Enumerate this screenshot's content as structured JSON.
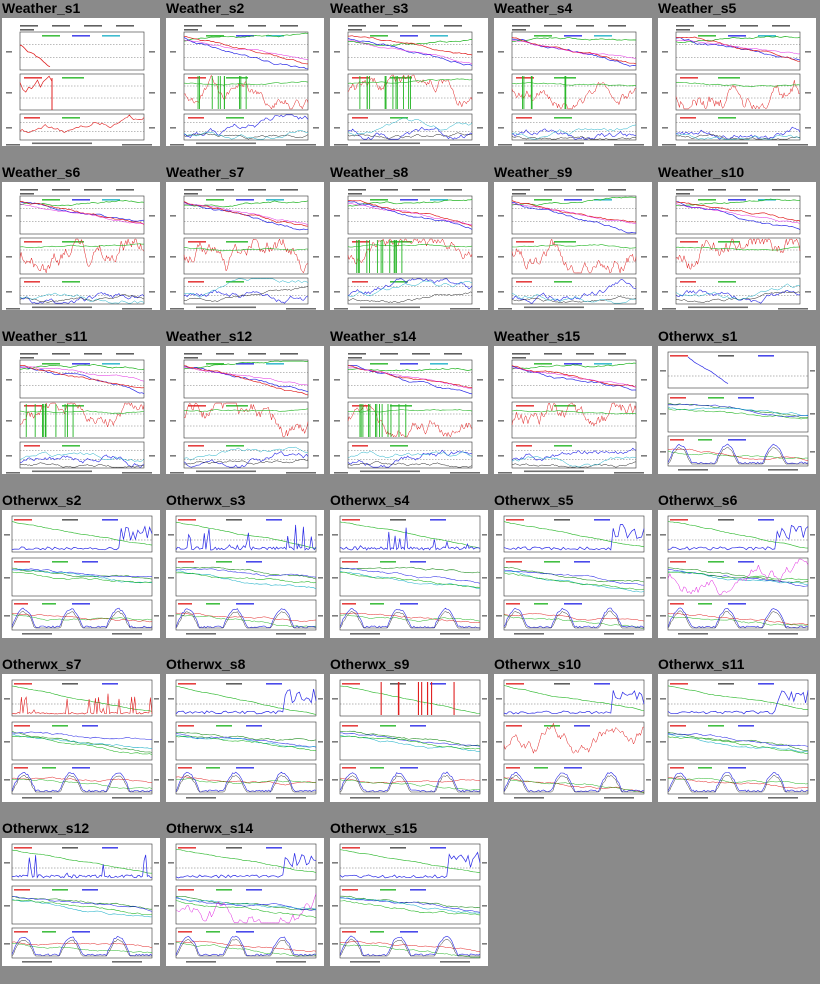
{
  "page": {
    "background": "#8a8a8a"
  },
  "colors": {
    "red": "#e02020",
    "green": "#22b422",
    "blue": "#2a2ae6",
    "cyan": "#1fb0c8",
    "magenta": "#e020e0",
    "black": "#222222"
  },
  "thumbnails": [
    {
      "title": "Weather_s1",
      "kind": "weather",
      "variant": "sparse"
    },
    {
      "title": "Weather_s2",
      "kind": "weather",
      "variant": "bars"
    },
    {
      "title": "Weather_s3",
      "kind": "weather",
      "variant": "bars"
    },
    {
      "title": "Weather_s4",
      "kind": "weather",
      "variant": "bars"
    },
    {
      "title": "Weather_s5",
      "kind": "weather",
      "variant": "noisy"
    },
    {
      "title": "Weather_s6",
      "kind": "weather",
      "variant": "noisy"
    },
    {
      "title": "Weather_s7",
      "kind": "weather",
      "variant": "noisy"
    },
    {
      "title": "Weather_s8",
      "kind": "weather",
      "variant": "bars"
    },
    {
      "title": "Weather_s9",
      "kind": "weather",
      "variant": "noisy"
    },
    {
      "title": "Weather_s10",
      "kind": "weather",
      "variant": "noisy"
    },
    {
      "title": "Weather_s11",
      "kind": "weather",
      "variant": "bars"
    },
    {
      "title": "Weather_s12",
      "kind": "weather",
      "variant": "noisy"
    },
    {
      "title": "Weather_s14",
      "kind": "weather",
      "variant": "bars"
    },
    {
      "title": "Weather_s15",
      "kind": "weather",
      "variant": "noisy"
    },
    {
      "title": "Otherwx_s1",
      "kind": "otherwx",
      "variant": "sparse"
    },
    {
      "title": "Otherwx_s2",
      "kind": "otherwx",
      "variant": "normal"
    },
    {
      "title": "Otherwx_s3",
      "kind": "otherwx",
      "variant": "spiky"
    },
    {
      "title": "Otherwx_s4",
      "kind": "otherwx",
      "variant": "spiky"
    },
    {
      "title": "Otherwx_s5",
      "kind": "otherwx",
      "variant": "normal"
    },
    {
      "title": "Otherwx_s6",
      "kind": "otherwx",
      "variant": "magenta"
    },
    {
      "title": "Otherwx_s7",
      "kind": "otherwx",
      "variant": "redspikes"
    },
    {
      "title": "Otherwx_s8",
      "kind": "otherwx",
      "variant": "normal"
    },
    {
      "title": "Otherwx_s9",
      "kind": "otherwx",
      "variant": "redbars"
    },
    {
      "title": "Otherwx_s10",
      "kind": "otherwx",
      "variant": "rednoise"
    },
    {
      "title": "Otherwx_s11",
      "kind": "otherwx",
      "variant": "normal"
    },
    {
      "title": "Otherwx_s12",
      "kind": "otherwx",
      "variant": "spiky"
    },
    {
      "title": "Otherwx_s14",
      "kind": "otherwx",
      "variant": "magenta"
    },
    {
      "title": "Otherwx_s15",
      "kind": "otherwx",
      "variant": "normal"
    }
  ]
}
